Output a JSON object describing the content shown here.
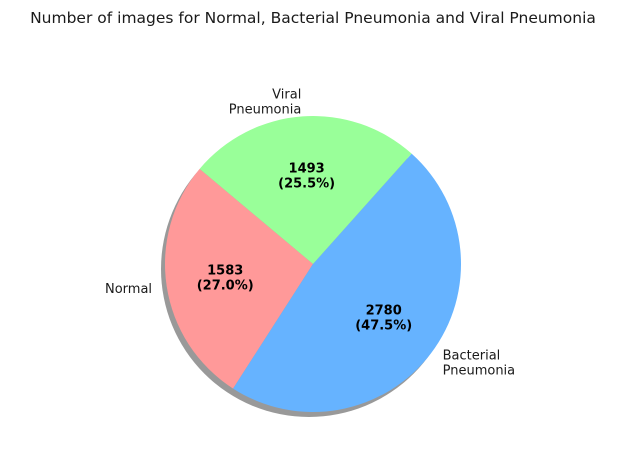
{
  "chart_data": {
    "type": "pie",
    "title": "Number of images for Normal, Bacterial Pneumonia and Viral Pneumonia",
    "slices": [
      {
        "label": "Normal",
        "label_lines": [
          "Normal"
        ],
        "value": 1583,
        "value_text": "1583",
        "percent_text": "(27.0%)",
        "color": "#ff9999"
      },
      {
        "label": "Bacterial Pneumonia",
        "label_lines": [
          "Bacterial",
          "Pneumonia"
        ],
        "value": 2780,
        "value_text": "2780",
        "percent_text": "(47.5%)",
        "color": "#66b3ff"
      },
      {
        "label": "Viral Pneumonia",
        "label_lines": [
          "Viral",
          "Pneumonia"
        ],
        "value": 1493,
        "value_text": "1493",
        "percent_text": "(25.5%)",
        "color": "#99ff99"
      }
    ],
    "start_angle_deg": 140,
    "direction": "counterclockwise",
    "shadow": true,
    "legend": "none"
  }
}
